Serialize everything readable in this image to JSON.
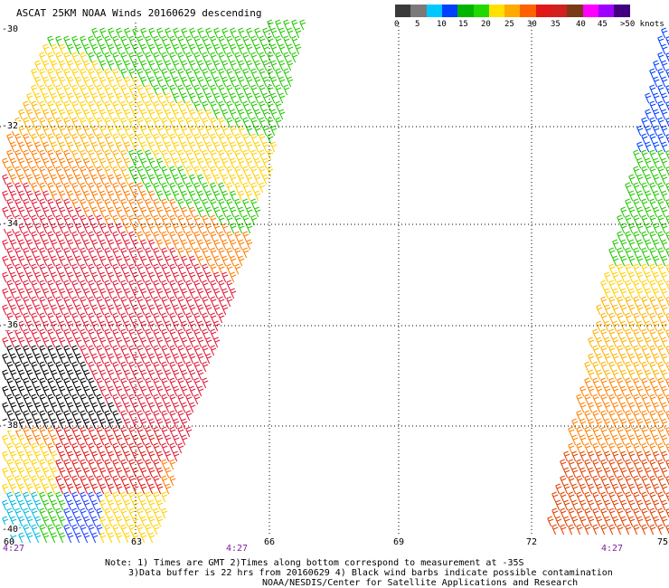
{
  "title": "ASCAT 25KM NOAA Winds 20160629 descending",
  "colorbar": {
    "colors": [
      "#3a3a3a",
      "#7a7a7a",
      "#00c8ff",
      "#0040ff",
      "#00b400",
      "#22d800",
      "#ffe000",
      "#ffaa00",
      "#ff6000",
      "#e01818",
      "#d02020",
      "#7a3a18",
      "#ff00ff",
      "#a000ff",
      "#400080"
    ],
    "labels": [
      "0",
      "5",
      "10",
      "15",
      "20",
      "25",
      "30",
      "35",
      "40",
      "45",
      ">50 knots"
    ]
  },
  "lat_labels": [
    "-30",
    "-32",
    "-34",
    "-36",
    "-38",
    "-40"
  ],
  "lon_labels": [
    "60",
    "63",
    "66",
    "69",
    "72",
    "75"
  ],
  "times": [
    "4:27",
    "4:27",
    "4:27"
  ],
  "notes": [
    "Note: 1) Times are GMT 2)Times along bottom correspond to measurement at -35S",
    "3)Data buffer is 22 hrs from 20160629 4) Black wind barbs indicate possible contamination",
    "NOAA/NESDIS/Center for Satellite Applications and Research"
  ]
}
